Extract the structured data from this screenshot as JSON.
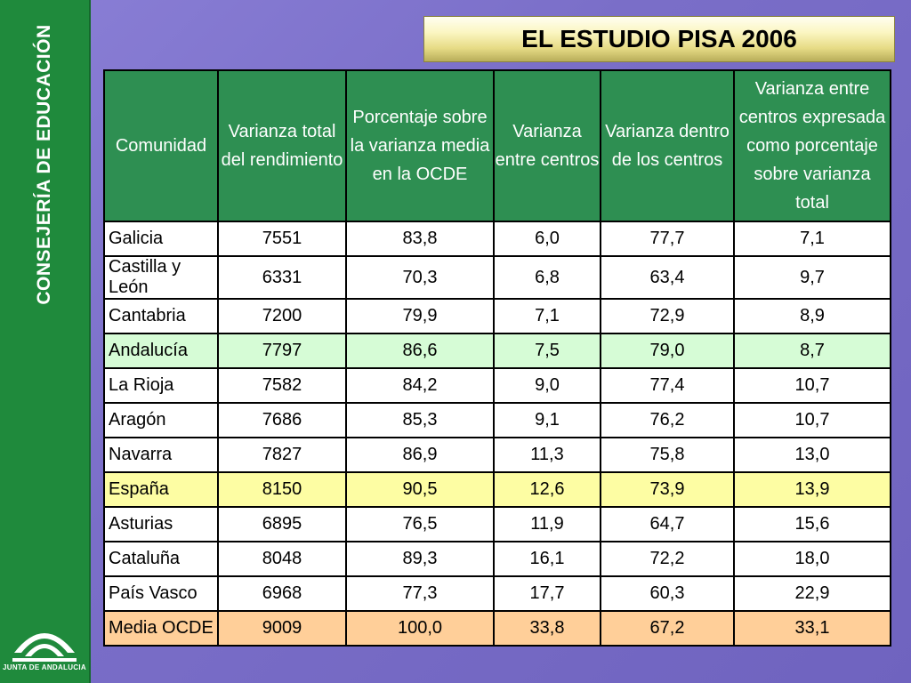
{
  "sidebar": {
    "vertical_title": "CONSEJERÍA DE EDUCACIÓN",
    "logo_text": "JUNTA DE ANDALUCIA"
  },
  "title": "EL ESTUDIO PISA 2006",
  "table": {
    "headers": [
      "Comunidad",
      "Varianza total del rendimiento",
      "Porcentaje sobre la varianza media en la OCDE",
      "Varianza entre centros",
      "Varianza dentro de los centros",
      "Varianza entre centros expresada como porcentaje sobre varianza total"
    ],
    "rows": [
      {
        "cells": [
          "Galicia",
          "7551",
          "83,8",
          "6,0",
          "77,7",
          "7,1"
        ],
        "highlight": ""
      },
      {
        "cells": [
          "Castilla y León",
          "6331",
          "70,3",
          "6,8",
          "63,4",
          "9,7"
        ],
        "highlight": ""
      },
      {
        "cells": [
          "Cantabria",
          "7200",
          "79,9",
          "7,1",
          "72,9",
          "8,9"
        ],
        "highlight": ""
      },
      {
        "cells": [
          "Andalucía",
          "7797",
          "86,6",
          "7,5",
          "79,0",
          "8,7"
        ],
        "highlight": "green"
      },
      {
        "cells": [
          "La Rioja",
          "7582",
          "84,2",
          "9,0",
          "77,4",
          "10,7"
        ],
        "highlight": ""
      },
      {
        "cells": [
          "Aragón",
          "7686",
          "85,3",
          "9,1",
          "76,2",
          "10,7"
        ],
        "highlight": ""
      },
      {
        "cells": [
          "Navarra",
          "7827",
          "86,9",
          "11,3",
          "75,8",
          "13,0"
        ],
        "highlight": ""
      },
      {
        "cells": [
          "España",
          "8150",
          "90,5",
          "12,6",
          "73,9",
          "13,9"
        ],
        "highlight": "yellow"
      },
      {
        "cells": [
          "Asturias",
          "6895",
          "76,5",
          "11,9",
          "64,7",
          "15,6"
        ],
        "highlight": ""
      },
      {
        "cells": [
          "Cataluña",
          "8048",
          "89,3",
          "16,1",
          "72,2",
          "18,0"
        ],
        "highlight": ""
      },
      {
        "cells": [
          "País Vasco",
          "6968",
          "77,3",
          "17,7",
          "60,3",
          "22,9"
        ],
        "highlight": ""
      },
      {
        "cells": [
          "Media OCDE",
          "9009",
          "100,0",
          "33,8",
          "67,2",
          "33,1"
        ],
        "highlight": "orange"
      }
    ]
  },
  "colors": {
    "sidebar": "#1f8a3c",
    "header": "#2e8f52",
    "highlight_green": "#d6fcd6",
    "highlight_yellow": "#fdfda3",
    "highlight_orange": "#ffcf99",
    "background": "#7a6ec8"
  }
}
